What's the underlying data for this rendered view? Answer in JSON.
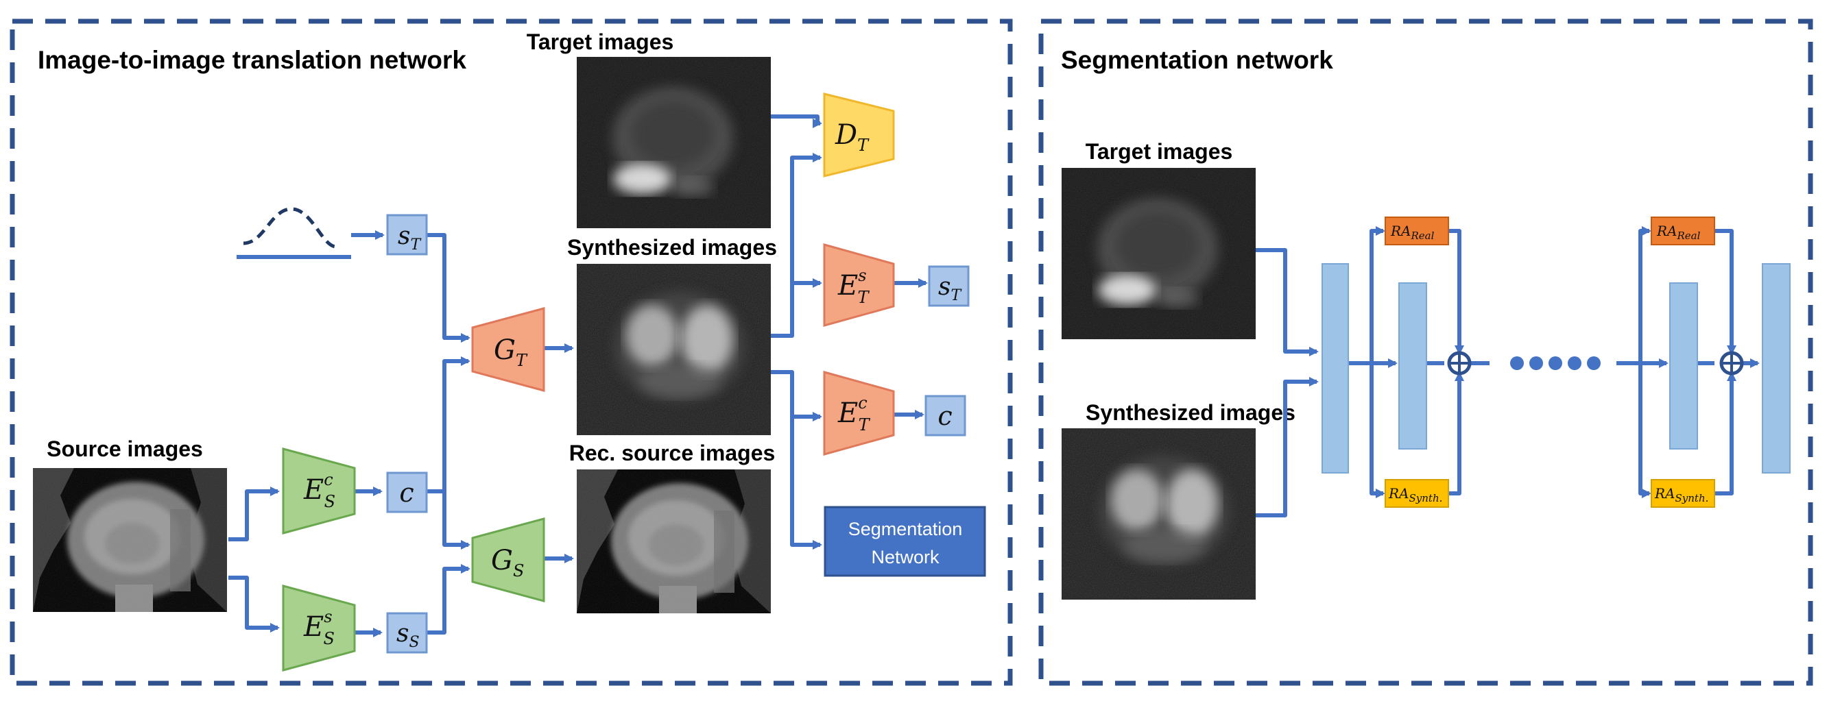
{
  "colors": {
    "frame": "#2f528f",
    "arrow": "#4472c4",
    "box_fill": "#a9c6ea",
    "box_stroke": "#6f98d0",
    "generator_fill": "#f4a582",
    "generator_stroke": "#e0785a",
    "encoder_s_fill": "#a9d18e",
    "encoder_s_stroke": "#6aa84f",
    "disc_fill": "#ffd966",
    "disc_stroke": "#f1b72b",
    "seg_button": "#4472c4",
    "ra_real": "#ed7d31",
    "ra_synth": "#ffc000",
    "column": "#9dc3e6"
  },
  "left_panel": {
    "title": "Image-to-image translation network",
    "labels": {
      "target_images": "Target images",
      "synthesized_images": "Synthesized images",
      "rec_source_images": "Rec. source images",
      "source_images": "Source images"
    },
    "nodes": {
      "s_T": {
        "main": "s",
        "sub": "T"
      },
      "c": {
        "main": "c"
      },
      "s_S": {
        "main": "s",
        "sub": "S"
      },
      "G_T": {
        "main": "G",
        "sub": "T"
      },
      "G_S": {
        "main": "G",
        "sub": "S"
      },
      "E_S_c": {
        "main": "E",
        "sub": "S",
        "sup": "c"
      },
      "E_S_s": {
        "main": "E",
        "sub": "S",
        "sup": "s"
      },
      "D_T": {
        "main": "D",
        "sub": "T"
      },
      "E_T_s": {
        "main": "E",
        "sub": "T",
        "sup": "s"
      },
      "E_T_c": {
        "main": "E",
        "sub": "T",
        "sup": "c"
      },
      "out_s_T": {
        "main": "s",
        "sub": "T"
      },
      "out_c": {
        "main": "c"
      }
    },
    "segmentation_button": {
      "line1": "Segmentation",
      "line2": "Network"
    }
  },
  "right_panel": {
    "title": "Segmentation network",
    "labels": {
      "target_images": "Target images",
      "synthesized_images": "Synthesized images"
    },
    "ra_real": {
      "main": "RA",
      "sub": "Real"
    },
    "ra_synth": {
      "main": "RA",
      "sub": "Synth."
    },
    "ellipsis_dots": 5
  }
}
